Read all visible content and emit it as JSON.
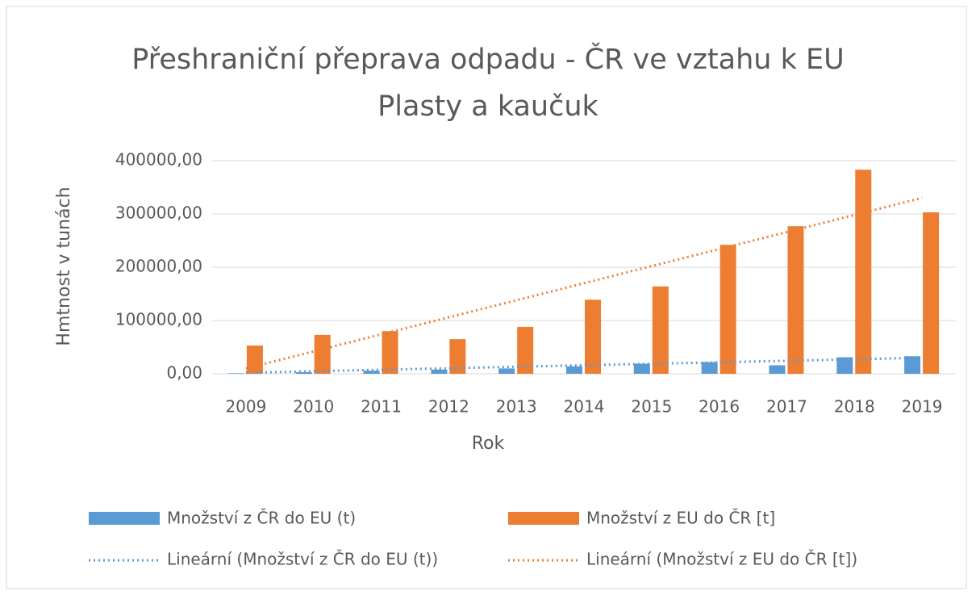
{
  "chart_data": {
    "type": "bar",
    "title": [
      "Přeshraniční přeprava odpadu - ČR ve vztahu k EU",
      "Plasty a kaučuk"
    ],
    "x_label": "Rok",
    "y_label": "Hmtnost v tunách",
    "categories": [
      "2009",
      "2010",
      "2011",
      "2012",
      "2013",
      "2014",
      "2015",
      "2016",
      "2017",
      "2018",
      "2019"
    ],
    "series": [
      {
        "name": "Množství z ČR do EU (t)",
        "color": "#5b9bd5",
        "values": [
          1000,
          3000,
          6000,
          8000,
          10000,
          14000,
          19000,
          22000,
          16000,
          31000,
          33000
        ]
      },
      {
        "name": "Množství z EU do ČR [t]",
        "color": "#ed7d31",
        "values": [
          53000,
          73000,
          80000,
          65000,
          88000,
          139000,
          164000,
          242000,
          277000,
          383000,
          303000
        ]
      }
    ],
    "trendlines": [
      {
        "name": "Lineární (Množství z ČR do EU (t))",
        "color": "#5b9bd5",
        "values": [
          2000,
          30000
        ]
      },
      {
        "name": "Lineární (Množství z EU do ČR [t])",
        "color": "#ed7d31",
        "values": [
          10000,
          330000
        ]
      }
    ],
    "ylim": [
      0,
      400000
    ],
    "yticks": [
      {
        "value": 0,
        "label": "0,00"
      },
      {
        "value": 100000,
        "label": "100000,00"
      },
      {
        "value": 200000,
        "label": "200000,00"
      },
      {
        "value": 300000,
        "label": "300000,00"
      },
      {
        "value": 400000,
        "label": "400000,00"
      }
    ],
    "grid": true,
    "legend": "bottom"
  }
}
